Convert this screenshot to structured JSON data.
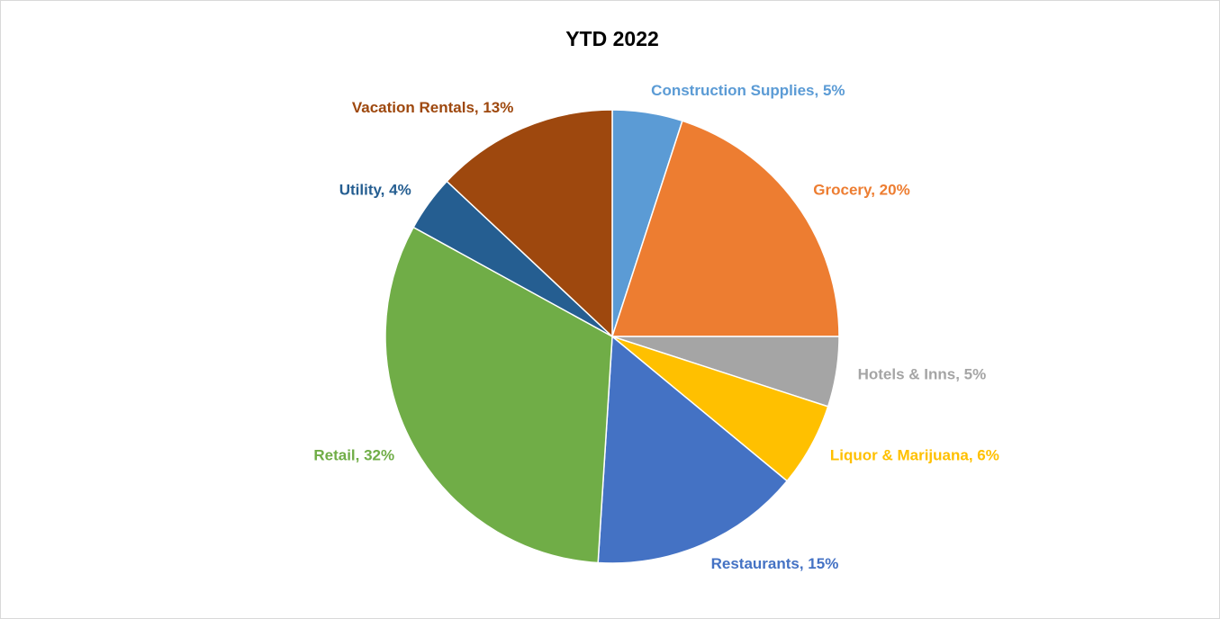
{
  "chart_data": {
    "type": "pie",
    "title": "YTD 2022",
    "values": [
      5,
      20,
      5,
      6,
      15,
      32,
      4,
      13
    ],
    "value_labels": [
      "Construction Supplies, 5%",
      "Grocery, 20%",
      "Hotels & Inns, 5%",
      "Liquor & Marijuana, 6%",
      "Restaurants, 15%",
      "Retail, 32%",
      "Utility, 4%",
      "Vacation Rentals, 13%"
    ],
    "colors": [
      "#5b9bd5",
      "#ed7d31",
      "#a5a5a5",
      "#ffc000",
      "#4472c4",
      "#70ad47",
      "#255e91",
      "#9e480e"
    ]
  }
}
